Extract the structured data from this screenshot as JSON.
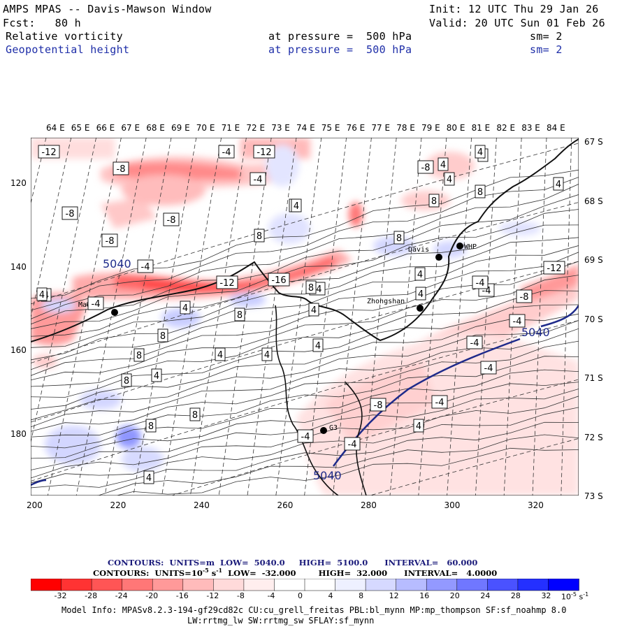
{
  "header": {
    "title": "AMPS MPAS -- Davis-Mawson Window",
    "init": "Init: 12 UTC Thu 29 Jan 26",
    "fcst": "Fcst:   80 h",
    "valid": "Valid: 20 UTC Sun 01 Feb 26",
    "field1": {
      "name": "Relative vorticity",
      "level": "at pressure =  500 hPa",
      "sm": "sm= 2"
    },
    "field2": {
      "name": "Geopotential height",
      "level": "at pressure =  500 hPa",
      "sm": "sm= 2"
    }
  },
  "map": {
    "lon_labels": [
      "64 E",
      "65 E",
      "66 E",
      "67 E",
      "68 E",
      "69 E",
      "70 E",
      "71 E",
      "72 E",
      "73 E",
      "74 E",
      "75 E",
      "76 E",
      "77 E",
      "78 E",
      "79 E",
      "80 E",
      "81 E",
      "82 E",
      "83 E",
      "84 E"
    ],
    "lat_labels": [
      "67 S",
      "68 S",
      "69 S",
      "70 S",
      "71 S",
      "72 S",
      "73 S"
    ],
    "x_ticks": [
      "200",
      "220",
      "240",
      "260",
      "280",
      "300",
      "320"
    ],
    "y_ticks": [
      "120",
      "140",
      "160",
      "180"
    ],
    "stations": [
      {
        "name": "Mawson"
      },
      {
        "name": "Davis"
      },
      {
        "name": "WHP"
      },
      {
        "name": "Zhongshan"
      },
      {
        "name": "G3"
      }
    ],
    "height_labels": [
      "5040",
      "5040",
      "5040"
    ],
    "vort_labels": [
      "-12",
      "-8",
      "-8",
      "-8",
      "-8",
      "-12",
      "-4",
      "-4",
      "-12",
      "-4",
      "-4",
      "-16",
      "-4",
      "-8",
      "-8",
      "-4",
      "-12",
      "-8",
      "-4",
      "-4",
      "-4",
      "-4",
      "-4",
      "-4",
      "-4",
      "4",
      "8",
      "4",
      "8",
      "8",
      "8",
      "4",
      "4",
      "8",
      "4",
      "8",
      "4",
      "4",
      "8",
      "4",
      "4",
      "4",
      "8",
      "4",
      "4",
      "8",
      "4",
      "4",
      "8",
      "4",
      "8",
      "8",
      "4",
      "4",
      "4",
      "4"
    ]
  },
  "contours": {
    "height": {
      "label": "CONTOURS:  UNITS=m  LOW=  5040.0     HIGH=  5100.0      INTERVAL=   60.000"
    },
    "vorticity": {
      "label": "CONTOURS:  UNITS=10",
      "exp": "-5",
      "unit": " s",
      "exp2": "-1",
      "rest": "  LOW=  -32.000        HIGH=  32.000      INTERVAL=   4.0000"
    }
  },
  "colorbar": {
    "labels": [
      "-32",
      "-28",
      "-24",
      "-20",
      "-16",
      "-12",
      "-8",
      "-4",
      "0",
      "4",
      "8",
      "12",
      "16",
      "20",
      "24",
      "28",
      "32"
    ],
    "unit_base": "10",
    "unit_exp": "-5",
    "unit_tail": " s",
    "unit_tail_exp": "-1",
    "colors": [
      "#ff0000",
      "#ff3333",
      "#ff5555",
      "#ff7777",
      "#ff9999",
      "#ffbbbb",
      "#ffdada",
      "#ffeeee",
      "#ffffff",
      "#ffffff",
      "#eef0ff",
      "#d6d9ff",
      "#b7bcff",
      "#9399ff",
      "#7077ff",
      "#4a52ff",
      "#2430ff",
      "#0000ff"
    ]
  },
  "model_info": {
    "line1": "Model Info: MPASv8.2.3-194-gf29cd82c CU:cu_grell_freitas PBL:bl_mynn MP:mp_thompson SF:sf_noahmp 8.0",
    "line2": "LW:rrtmg_lw SW:rrtmg_sw SFLAY:sf_mynn"
  }
}
